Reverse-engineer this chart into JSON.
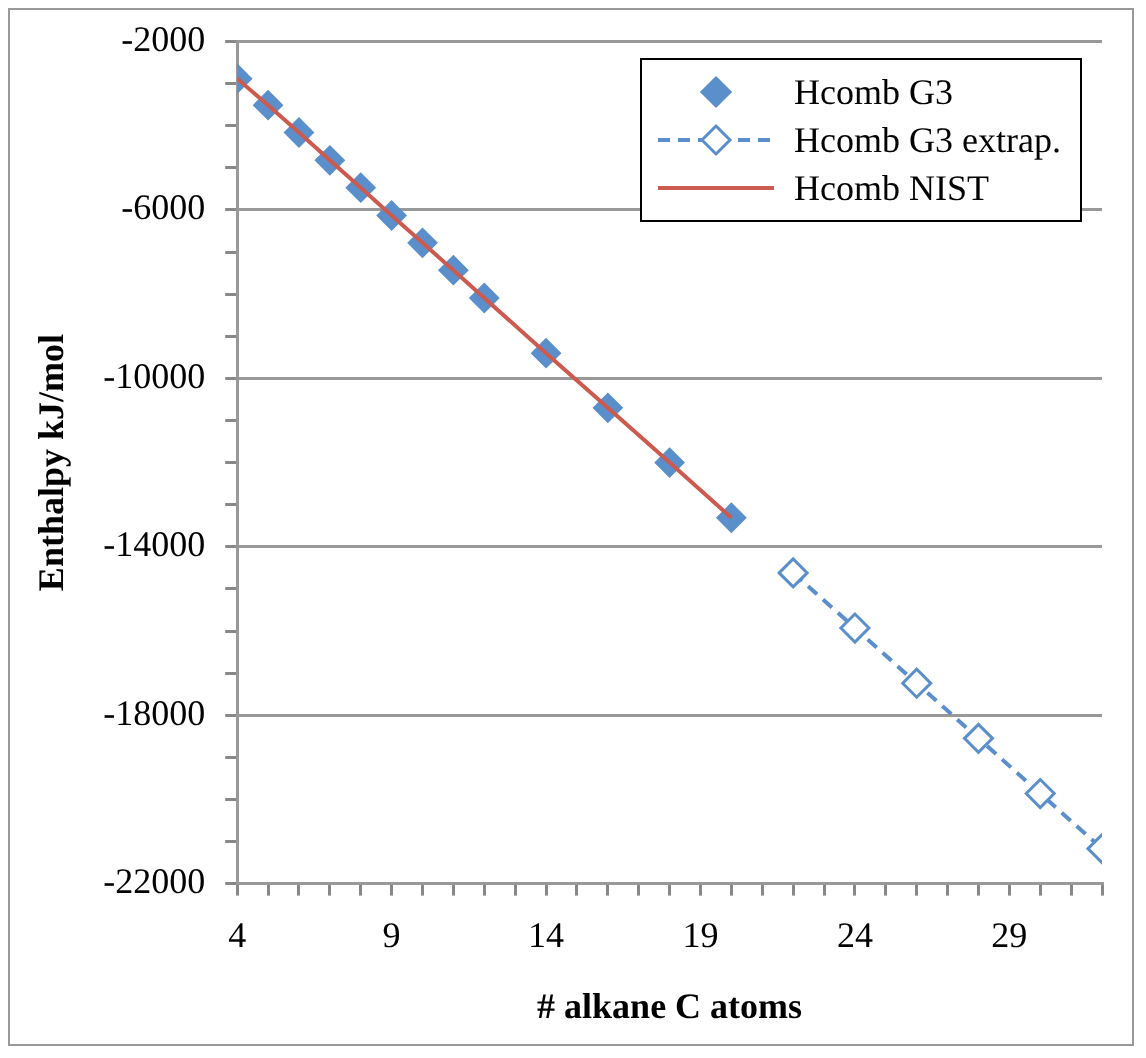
{
  "chart_data": {
    "type": "line",
    "xlabel": "# alkane C atoms",
    "ylabel": "Enthalpy kJ/mol",
    "xlim": [
      4,
      32
    ],
    "ylim": [
      -22000,
      -2000
    ],
    "xticks": [
      4,
      {
        "value": 5,
        "label": null
      },
      {
        "value": 6,
        "label": null
      },
      {
        "value": 7,
        "label": null
      },
      {
        "value": 8,
        "label": null
      },
      9,
      {
        "value": 10,
        "label": null
      },
      {
        "value": 11,
        "label": null
      },
      {
        "value": 12,
        "label": null
      },
      {
        "value": 13,
        "label": null
      },
      14,
      {
        "value": 15,
        "label": null
      },
      {
        "value": 16,
        "label": null
      },
      {
        "value": 17,
        "label": null
      },
      {
        "value": 18,
        "label": null
      },
      19,
      {
        "value": 20,
        "label": null
      },
      {
        "value": 21,
        "label": null
      },
      {
        "value": 22,
        "label": null
      },
      {
        "value": 23,
        "label": null
      },
      24,
      {
        "value": 25,
        "label": null
      },
      {
        "value": 26,
        "label": null
      },
      {
        "value": 27,
        "label": null
      },
      {
        "value": 28,
        "label": null
      },
      29,
      {
        "value": 30,
        "label": null
      },
      {
        "value": 31,
        "label": null
      },
      {
        "value": 32,
        "label": null
      }
    ],
    "yticks": [
      -22000,
      {
        "value": -21000,
        "label": null
      },
      {
        "value": -20000,
        "label": null
      },
      {
        "value": -19000,
        "label": null
      },
      -18000,
      {
        "value": -17000,
        "label": null
      },
      {
        "value": -16000,
        "label": null
      },
      {
        "value": -15000,
        "label": null
      },
      -14000,
      {
        "value": -13000,
        "label": null
      },
      {
        "value": -12000,
        "label": null
      },
      {
        "value": -11000,
        "label": null
      },
      -10000,
      {
        "value": -9000,
        "label": null
      },
      {
        "value": -8000,
        "label": null
      },
      {
        "value": -7000,
        "label": null
      },
      -6000,
      {
        "value": -5000,
        "label": null
      },
      {
        "value": -4000,
        "label": null
      },
      {
        "value": -3000,
        "label": null
      },
      -2000
    ],
    "grid": "y",
    "legend": "top right",
    "series": [
      {
        "name": "Hcomb G3",
        "type": "scatter",
        "marker": "diamond",
        "color": "#5b8fcb",
        "x": [
          4,
          5,
          6,
          7,
          8,
          9,
          10,
          11,
          12,
          14,
          16,
          18,
          20
        ],
        "values": [
          -2880,
          -3510,
          -4160,
          -4820,
          -5470,
          -6130,
          -6780,
          -7430,
          -8090,
          -9400,
          -10700,
          -12000,
          -13310
        ]
      },
      {
        "name": "Hcomb G3 extrap.",
        "type": "line",
        "marker": "diamond",
        "line_style": "dashed",
        "color": "#5b8fcb",
        "x": [
          22,
          24,
          26,
          28,
          30,
          32
        ],
        "values": [
          -14620,
          -15930,
          -17240,
          -18550,
          -19860,
          -21170
        ]
      },
      {
        "name": "Hcomb NIST",
        "type": "line",
        "marker": "none",
        "line_style": "solid",
        "color": "#cc5a4e",
        "x": [
          4,
          5,
          6,
          7,
          8,
          9,
          10,
          11,
          12,
          14,
          16,
          18,
          20
        ],
        "values": [
          -2880,
          -3510,
          -4160,
          -4820,
          -5470,
          -6130,
          -6780,
          -7430,
          -8090,
          -9400,
          -10700,
          -12000,
          -13310
        ]
      }
    ]
  }
}
